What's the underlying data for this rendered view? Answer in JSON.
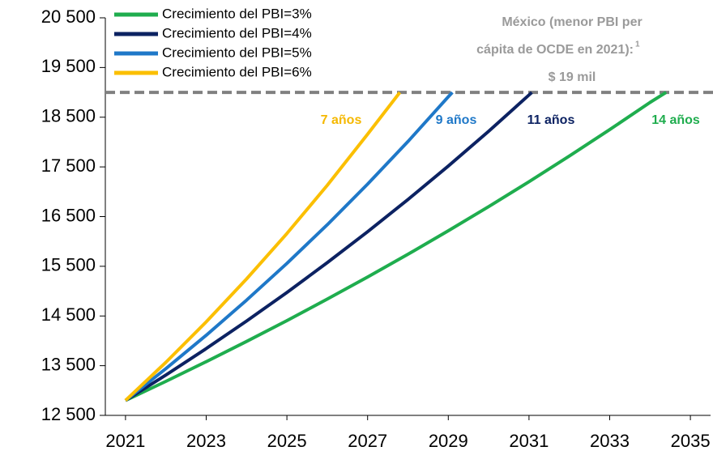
{
  "chart_data": {
    "type": "line",
    "xlim": [
      2020.5,
      2035.5
    ],
    "xticks": [
      2021,
      2023,
      2025,
      2027,
      2029,
      2031,
      2033,
      2035
    ],
    "ylim": [
      12500,
      20500
    ],
    "yticks": [
      {
        "value": 12500,
        "label": "12 500"
      },
      {
        "value": 13500,
        "label": "13 500"
      },
      {
        "value": 14500,
        "label": "14 500"
      },
      {
        "value": 15500,
        "label": "15 500"
      },
      {
        "value": 16500,
        "label": "16 500"
      },
      {
        "value": 17500,
        "label": "17 500"
      },
      {
        "value": 18500,
        "label": "18 500"
      },
      {
        "value": 19500,
        "label": "19 500"
      },
      {
        "value": 20500,
        "label": "20 500"
      }
    ],
    "threshold": 19000,
    "threshold_color": "#808080",
    "series": [
      {
        "name": "Crecimiento del PBI=3%",
        "color": "#1fad4e",
        "x": [
          2021,
          2022,
          2023,
          2024,
          2025,
          2026,
          2027,
          2028,
          2029,
          2030,
          2031,
          2032,
          2033,
          2034,
          2034.4
        ],
        "values": [
          12800,
          13184,
          13580,
          13987,
          14407,
          14839,
          15284,
          15743,
          16215,
          16701,
          17202,
          17718,
          18250,
          18797,
          19000
        ]
      },
      {
        "name": "Crecimiento del PBI=4%",
        "color": "#0c2262",
        "x": [
          2021,
          2022,
          2023,
          2024,
          2025,
          2026,
          2027,
          2028,
          2029,
          2030,
          2031,
          2031.07
        ],
        "values": [
          12800,
          13312,
          13844,
          14398,
          14974,
          15573,
          16196,
          16844,
          17517,
          18218,
          18947,
          19000
        ]
      },
      {
        "name": "Crecimiento del PBI=5%",
        "color": "#1f78c8",
        "x": [
          2021,
          2022,
          2023,
          2024,
          2025,
          2026,
          2027,
          2028,
          2029,
          2029.1
        ],
        "values": [
          12800,
          13440,
          14112,
          14818,
          15558,
          16336,
          17153,
          18011,
          18912,
          19000
        ]
      },
      {
        "name": "Crecimiento del PBI=6%",
        "color": "#fbbf00",
        "x": [
          2021,
          2022,
          2023,
          2024,
          2025,
          2026,
          2027,
          2027.8
        ],
        "values": [
          12800,
          13568,
          14382,
          15245,
          16160,
          17129,
          18157,
          19000
        ]
      }
    ],
    "annotations": [
      {
        "text": "7 años",
        "color": "#f5b800"
      },
      {
        "text": "9 años",
        "color": "#1f78c8"
      },
      {
        "text": "11 años",
        "color": "#0c2262"
      },
      {
        "text": "14 años",
        "color": "#1fad4e"
      }
    ],
    "note": {
      "lines": [
        "México (menor PBI per",
        "cápita de OCDE en 2021):",
        "$ 19 mil"
      ],
      "superscript": "1",
      "color": "#9a9a9a"
    }
  }
}
